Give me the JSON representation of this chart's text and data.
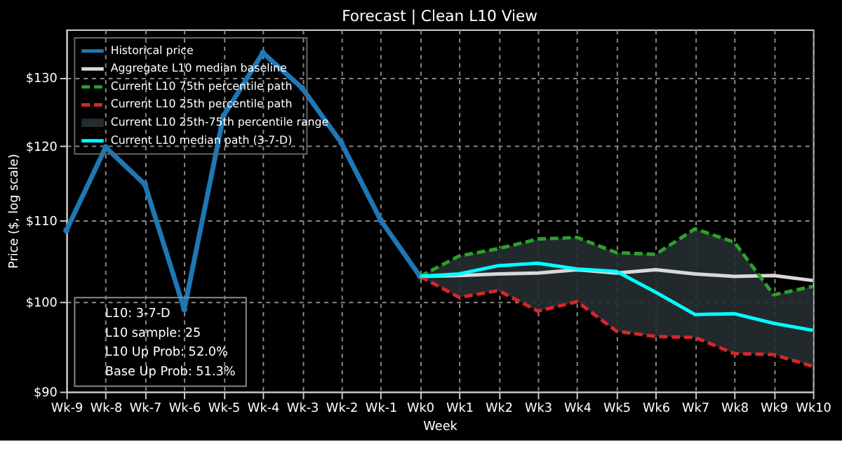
{
  "chart_data": {
    "type": "line",
    "title": "Forecast | Clean L10 View",
    "xlabel": "Week",
    "ylabel": "Price ($, log scale)",
    "categories": [
      "Wk-9",
      "Wk-8",
      "Wk-7",
      "Wk-6",
      "Wk-5",
      "Wk-4",
      "Wk-3",
      "Wk-2",
      "Wk-1",
      "Wk0",
      "Wk1",
      "Wk2",
      "Wk3",
      "Wk4",
      "Wk5",
      "Wk6",
      "Wk7",
      "Wk8",
      "Wk9",
      "Wk10"
    ],
    "series": [
      {
        "name": "Historical price",
        "color": "#1f77b4",
        "marker": "circle",
        "values": [
          108.7,
          119.8,
          114.7,
          99.1,
          124.3,
          133.8,
          128.4,
          120.4,
          110.0,
          103.0,
          null,
          null,
          null,
          null,
          null,
          null,
          null,
          null,
          null,
          null
        ]
      },
      {
        "name": "Aggregate L10 median baseline",
        "color": "#d9d9d9",
        "values": [
          null,
          null,
          null,
          null,
          null,
          null,
          null,
          null,
          null,
          103.0,
          103.1,
          103.3,
          103.4,
          103.8,
          103.4,
          103.8,
          103.3,
          103.0,
          103.1,
          102.5
        ]
      },
      {
        "name": "Current L10 75th percentile path",
        "color": "#2ca02c",
        "line_style": "dashed",
        "values": [
          null,
          null,
          null,
          null,
          null,
          null,
          null,
          null,
          null,
          103.0,
          105.5,
          106.4,
          107.6,
          107.8,
          105.9,
          105.7,
          108.9,
          107.2,
          100.8,
          101.8
        ]
      },
      {
        "name": "Current L10 25th percentile path",
        "color": "#d62728",
        "line_style": "dashed",
        "values": [
          null,
          null,
          null,
          null,
          null,
          null,
          null,
          null,
          null,
          103.0,
          100.5,
          101.3,
          98.9,
          100.0,
          96.6,
          96.0,
          95.9,
          94.1,
          94.0,
          92.7
        ]
      },
      {
        "name": "Current L10 25th-75th percentile range",
        "color": "#262d31",
        "type": "area",
        "values": [
          null,
          null,
          null,
          null,
          null,
          null,
          null,
          null,
          null,
          null,
          null,
          null,
          null,
          null,
          null,
          null,
          null,
          null,
          null,
          null
        ],
        "lower": [
          null,
          null,
          null,
          null,
          null,
          null,
          null,
          null,
          null,
          103.0,
          100.5,
          101.3,
          98.9,
          100.0,
          96.6,
          96.0,
          95.9,
          94.1,
          94.0,
          92.7
        ],
        "upper": [
          null,
          null,
          null,
          null,
          null,
          null,
          null,
          null,
          null,
          103.0,
          105.5,
          106.4,
          107.6,
          107.8,
          105.9,
          105.7,
          108.9,
          107.2,
          100.8,
          101.8
        ]
      },
      {
        "name": "Current L10 median path (3-7-D)",
        "color": "#00ffff",
        "values": [
          null,
          null,
          null,
          null,
          null,
          null,
          null,
          null,
          null,
          103.0,
          103.3,
          104.3,
          104.6,
          103.9,
          103.6,
          101.1,
          98.5,
          98.6,
          97.5,
          96.7
        ]
      }
    ],
    "log": "y",
    "ylim": [
      90,
      137.5
    ],
    "yticks": [
      {
        "value": 90,
        "label": "$90"
      },
      {
        "value": 100,
        "label": "$100"
      },
      {
        "value": 110,
        "label": "$110"
      },
      {
        "value": 120,
        "label": "$120"
      },
      {
        "value": 130,
        "label": "$130"
      }
    ],
    "grid": true,
    "legend": "top left",
    "annotations": [
      "L10: 3-7-D",
      "L10 sample: 25",
      "L10 Up Prob: 52.0%",
      "Base Up Prob: 51.3%"
    ]
  }
}
